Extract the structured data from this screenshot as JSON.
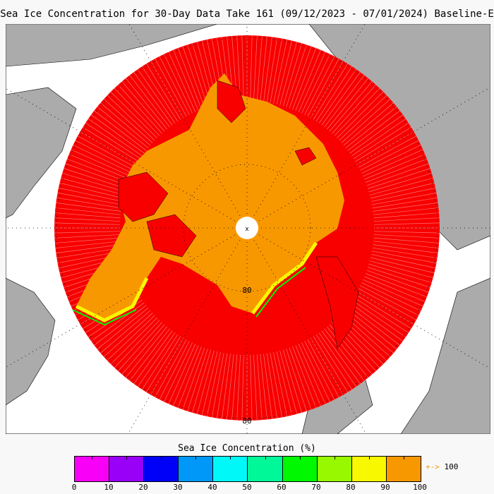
{
  "title": "Sea Ice Concentration for 30-Day Data Take 161 (09/12/2023 - 07/01/2024) Baseline-E",
  "map": {
    "latitude_labels": [
      "80",
      "80"
    ],
    "pole_marker": "x"
  },
  "legend": {
    "title": "Sea Ice Concentration (%)",
    "colors": [
      "#f800f8",
      "#9800f8",
      "#0000f8",
      "#0098f8",
      "#00f8f8",
      "#00f898",
      "#00f800",
      "#98f800",
      "#f8f800",
      "#f89800"
    ],
    "ticks": [
      "0",
      "10",
      "20",
      "30",
      "40",
      "50",
      "60",
      "70",
      "80",
      "90",
      "100"
    ],
    "over_arrow": "+->",
    "over_value": "100",
    "over_color": "#f89800"
  },
  "colors": {
    "land": "#ababab",
    "ocean": "#ffffff",
    "low_ice": "#f80000",
    "pack_ice": "#f89800"
  }
}
